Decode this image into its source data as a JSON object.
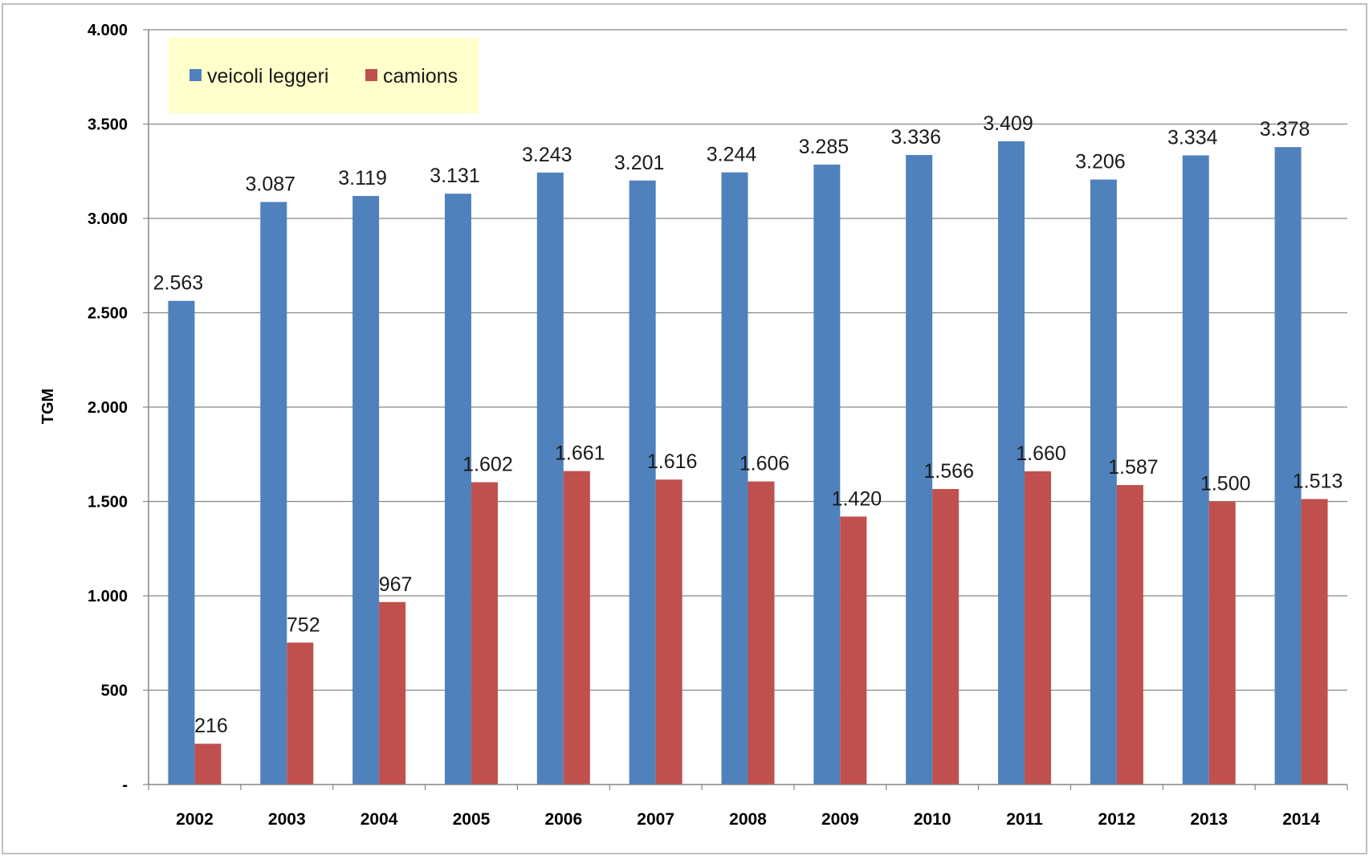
{
  "chart_data": {
    "type": "bar",
    "title": "",
    "xlabel": "",
    "ylabel": "TGM",
    "ylim": [
      0,
      4000
    ],
    "yticks": [
      0,
      500,
      1000,
      1500,
      2000,
      2500,
      3000,
      3500,
      4000
    ],
    "ytick_labels": [
      "-",
      "500",
      "1.000",
      "1.500",
      "2.000",
      "2.500",
      "3.000",
      "3.500",
      "4.000"
    ],
    "grid": true,
    "legend_position": "top-left",
    "categories": [
      "2002",
      "2003",
      "2004",
      "2005",
      "2006",
      "2007",
      "2008",
      "2009",
      "2010",
      "2011",
      "2012",
      "2013",
      "2014"
    ],
    "series": [
      {
        "name": "veicoli leggeri",
        "color": "#4f81bd",
        "values": [
          2563,
          3087,
          3119,
          3131,
          3243,
          3201,
          3244,
          3285,
          3336,
          3409,
          3206,
          3334,
          3378
        ],
        "labels": [
          "2.563",
          "3.087",
          "3.119",
          "3.131",
          "3.243",
          "3.201",
          "3.244",
          "3.285",
          "3.336",
          "3.409",
          "3.206",
          "3.334",
          "3.378"
        ]
      },
      {
        "name": "camions",
        "color": "#c0504d",
        "values": [
          216,
          752,
          967,
          1602,
          1661,
          1616,
          1606,
          1420,
          1566,
          1660,
          1587,
          1500,
          1513
        ],
        "labels": [
          "216",
          "752",
          "967",
          "1.602",
          "1.661",
          "1.616",
          "1.606",
          "1.420",
          "1.566",
          "1.660",
          "1.587",
          "1.500",
          "1.513"
        ]
      }
    ]
  }
}
